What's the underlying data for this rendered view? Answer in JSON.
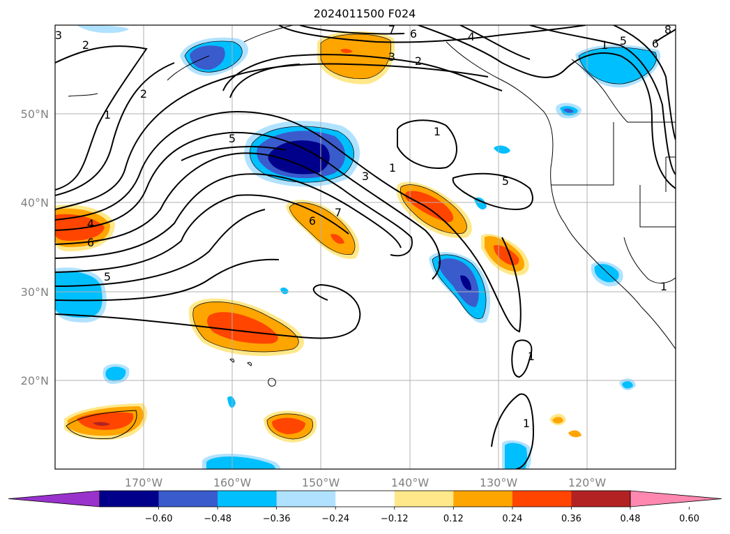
{
  "title": "2024011500 F024",
  "map": {
    "lon_range": [
      -180,
      -110
    ],
    "lat_range": [
      10,
      60
    ],
    "lon_ticks": [
      "170°W",
      "160°W",
      "150°W",
      "140°W",
      "130°W",
      "120°W"
    ],
    "lat_ticks": [
      "50°N",
      "40°N",
      "30°N",
      "20°N"
    ],
    "grid": true,
    "coastlines": true,
    "field_type": "filled contours with black line contours",
    "contour_labels": [
      "3",
      "2",
      "7",
      "6",
      "4",
      "3",
      "2",
      "5",
      "6",
      "8",
      "2",
      "1",
      "1",
      "5",
      "3",
      "1",
      "1",
      "4",
      "6",
      "7",
      "6",
      "5",
      "5",
      "1",
      "1",
      "1",
      "1"
    ]
  },
  "colorbar": {
    "orientation": "horizontal",
    "extend": "both",
    "levels": [
      -0.6,
      -0.48,
      -0.36,
      -0.24,
      -0.12,
      0.12,
      0.24,
      0.36,
      0.48,
      0.6
    ],
    "tick_labels": [
      "−0.60",
      "−0.48",
      "−0.36",
      "−0.24",
      "−0.12",
      "0.12",
      "0.24",
      "0.36",
      "0.48",
      "0.60"
    ],
    "colors": [
      "#9932cc",
      "#00008b",
      "#3a5bcc",
      "#00bfff",
      "#b0e2ff",
      "#ffffff",
      "#ffe88a",
      "#ffa500",
      "#ff4500",
      "#b22222",
      "#ff88b0"
    ]
  }
}
